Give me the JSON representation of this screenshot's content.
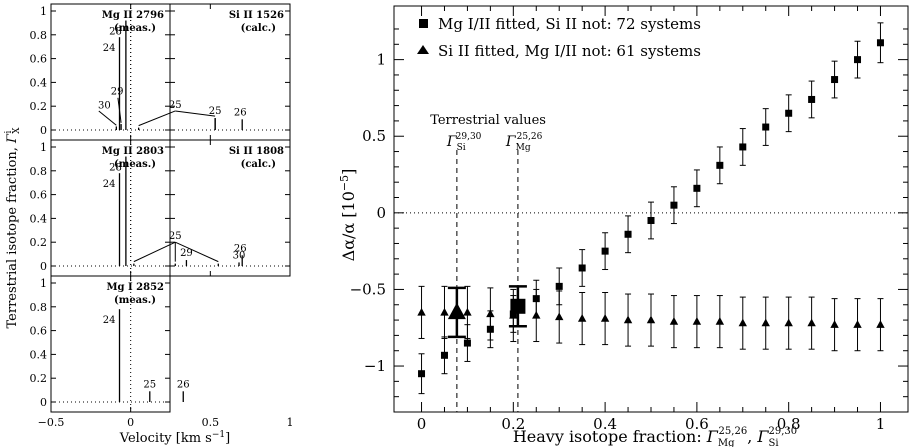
{
  "chart_data": [
    {
      "type": "bar",
      "panel": "Mg II 2796",
      "label": [
        "Mg II 2796",
        "(meas.)"
      ],
      "show_dotted_zero": true,
      "lines": [
        {
          "x": -0.07,
          "y": 0.78,
          "iso": "24"
        },
        {
          "x": 0.53,
          "y": 0.1,
          "iso": "25"
        },
        {
          "x": 0.7,
          "y": 0.09,
          "iso": "26"
        }
      ],
      "blend": {
        "iso": "25",
        "label_x": 0.28,
        "label_y": 0.16,
        "x": [
          0.05,
          0.53
        ],
        "y": [
          0.02,
          0.1
        ]
      },
      "ylim": [
        0,
        1
      ],
      "xlim": [
        -0.5,
        1
      ]
    },
    {
      "type": "bar",
      "panel": "Si II 1526",
      "label": [
        "Si II 1526",
        "(calc.)"
      ],
      "show_dotted_zero": false,
      "lines": [
        {
          "x": -0.03,
          "y": 0.92,
          "iso": "28"
        },
        {
          "x": -0.06,
          "y": 0.05,
          "iso": "29"
        },
        {
          "x": -0.09,
          "y": 0.03,
          "iso": "30"
        }
      ],
      "ylim": [
        0,
        1
      ],
      "xlim": [
        -0.5,
        1
      ]
    },
    {
      "type": "bar",
      "panel": "Mg II 2803",
      "label": [
        "Mg II 2803",
        "(meas.)"
      ],
      "show_dotted_zero": true,
      "lines": [
        {
          "x": -0.07,
          "y": 0.78,
          "iso": "24"
        },
        {
          "x": 0.7,
          "y": 0.09,
          "iso": "26"
        }
      ],
      "blend": {
        "iso": "25",
        "label_x": 0.28,
        "label_y": 0.2,
        "x": [
          0.02,
          0.28,
          0.55
        ],
        "y": [
          0.02,
          0.02,
          0.02
        ]
      },
      "ylim": [
        0,
        1
      ],
      "xlim": [
        -0.5,
        1
      ]
    },
    {
      "type": "bar",
      "panel": "Si II 1808",
      "label": [
        "Si II 1808",
        "(calc.)"
      ],
      "show_dotted_zero": false,
      "lines": [
        {
          "x": -0.03,
          "y": 0.92,
          "iso": "28"
        },
        {
          "x": 0.35,
          "y": 0.05,
          "iso": "29"
        },
        {
          "x": 0.68,
          "y": 0.03,
          "iso": "30"
        }
      ],
      "ylim": [
        0,
        1
      ],
      "xlim": [
        -0.5,
        1
      ]
    },
    {
      "type": "bar",
      "panel": "Mg I 2852",
      "label": [
        "Mg I 2852",
        "(meas.)"
      ],
      "show_dotted_zero": false,
      "lines": [
        {
          "x": -0.07,
          "y": 0.78,
          "iso": "24"
        },
        {
          "x": 0.12,
          "y": 0.09,
          "iso": "25"
        },
        {
          "x": 0.33,
          "y": 0.09,
          "iso": "26"
        }
      ],
      "ylim": [
        0,
        1
      ],
      "xlim": [
        -0.5,
        1
      ]
    },
    {
      "type": "scatter",
      "xlabel_text": "Heavy isotope fraction: ",
      "ylabel_text": "Δα/α [10",
      "ylabel_exp": "−5",
      "ylabel_close": "]",
      "xlim": [
        -0.06,
        1.06
      ],
      "ylim": [
        -1.3,
        1.35
      ],
      "xticks": [
        0,
        0.2,
        0.4,
        0.6,
        0.8,
        1
      ],
      "xtick_labels": [
        "0",
        "0.2",
        "0.4",
        "0.6",
        "0.8",
        "1"
      ],
      "yticks": [
        -1,
        -0.5,
        0,
        0.5,
        1
      ],
      "ytick_labels": [
        "−1",
        "−0.5",
        "0",
        "0.5",
        "1"
      ],
      "terrestrial_label": "Terrestrial values",
      "terrestrial_si_x": 0.077,
      "terrestrial_mg_x": 0.21,
      "series": [
        {
          "name": "Mg I/II fitted, Si II not: 72 systems",
          "marker": "square",
          "x": [
            0,
            0.05,
            0.1,
            0.15,
            0.2,
            0.25,
            0.3,
            0.35,
            0.4,
            0.45,
            0.5,
            0.55,
            0.6,
            0.65,
            0.7,
            0.75,
            0.8,
            0.85,
            0.9,
            0.95,
            1.0
          ],
          "y": [
            -1.05,
            -0.93,
            -0.85,
            -0.76,
            -0.66,
            -0.56,
            -0.48,
            -0.36,
            -0.25,
            -0.14,
            -0.05,
            0.05,
            0.16,
            0.31,
            0.43,
            0.56,
            0.65,
            0.74,
            0.87,
            1.0,
            1.11
          ],
          "err": [
            0.13,
            0.12,
            0.12,
            0.12,
            0.12,
            0.12,
            0.12,
            0.12,
            0.12,
            0.12,
            0.12,
            0.12,
            0.12,
            0.12,
            0.12,
            0.12,
            0.12,
            0.12,
            0.12,
            0.12,
            0.13
          ],
          "highlight": {
            "x": 0.21,
            "y": -0.61,
            "err": 0.13
          }
        },
        {
          "name": "Si II fitted, Mg I/II not: 61 systems",
          "marker": "triangle",
          "x": [
            0,
            0.05,
            0.1,
            0.15,
            0.2,
            0.25,
            0.3,
            0.35,
            0.4,
            0.45,
            0.5,
            0.55,
            0.6,
            0.65,
            0.7,
            0.75,
            0.8,
            0.85,
            0.9,
            0.95,
            1.0
          ],
          "y": [
            -0.65,
            -0.65,
            -0.65,
            -0.66,
            -0.67,
            -0.67,
            -0.68,
            -0.69,
            -0.69,
            -0.7,
            -0.7,
            -0.71,
            -0.71,
            -0.71,
            -0.72,
            -0.72,
            -0.72,
            -0.72,
            -0.73,
            -0.73,
            -0.73
          ],
          "err": [
            0.17,
            0.17,
            0.17,
            0.17,
            0.17,
            0.17,
            0.17,
            0.17,
            0.17,
            0.17,
            0.17,
            0.17,
            0.17,
            0.17,
            0.17,
            0.17,
            0.17,
            0.17,
            0.17,
            0.17,
            0.17
          ],
          "highlight": {
            "x": 0.077,
            "y": -0.65,
            "err": 0.16
          }
        }
      ]
    }
  ],
  "left_axes": {
    "yticks": [
      0,
      0.2,
      0.4,
      0.6,
      0.8,
      1
    ],
    "ytick_labels": [
      "0",
      "0.2",
      "0.4",
      "0.6",
      "0.8",
      "1"
    ],
    "xticks": [
      -0.5,
      0,
      0.5,
      1
    ],
    "xtick_labels": [
      "−0.5",
      "0",
      "0.5",
      "1"
    ],
    "ylabel_text": "Terrestrial isotope fraction, ",
    "xlabel_text": "Velocity [km s",
    "xlabel_exp": "−1",
    "xlabel_close": "]"
  }
}
